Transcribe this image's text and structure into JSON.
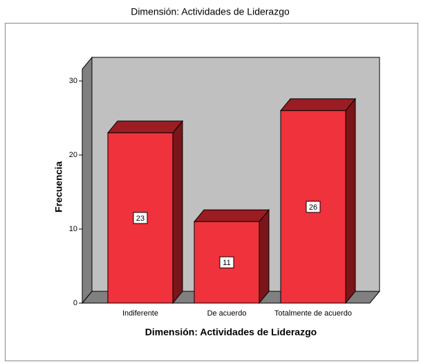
{
  "chart_data": {
    "type": "bar3d",
    "title": "Dimensión: Actividades de Liderazgo",
    "x_label": "Dimensión: Actividades de Liderazgo",
    "y_label": "Frecuencia",
    "categories": [
      "Indiferente",
      "De acuerdo",
      "Totalmente de acuerdo"
    ],
    "values": [
      23,
      11,
      26
    ],
    "color": "#f0323c",
    "ylim": [
      0,
      31.6
    ],
    "yticks": [
      0,
      10,
      20,
      30
    ]
  }
}
